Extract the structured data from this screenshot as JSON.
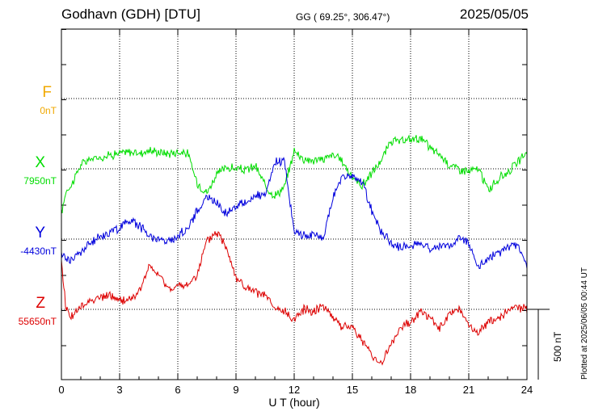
{
  "header": {
    "station": "Godhavn (GDH)  [DTU]",
    "coordinates": "GG ( 69.25°, 306.47°)",
    "date": "2025/05/05"
  },
  "footer": {
    "plotted": "Plotted at 2025/06/05 00:44 UT"
  },
  "components": [
    {
      "letter": "F",
      "baseline": "0nT",
      "color": "#f0a800"
    },
    {
      "letter": "X",
      "baseline": "7950nT",
      "color": "#00dd00"
    },
    {
      "letter": "Y",
      "baseline": "-4430nT",
      "color": "#0000dd"
    },
    {
      "letter": "Z",
      "baseline": "55650nT",
      "color": "#dd0000"
    }
  ],
  "scale_bar": {
    "label": "500 nT",
    "value_nT": 500
  },
  "chart_data": {
    "type": "line",
    "xlabel": "U T (hour)",
    "xlim": [
      0,
      24
    ],
    "xticks": [
      "0",
      "3",
      "6",
      "9",
      "12",
      "15",
      "18",
      "21",
      "24"
    ],
    "ylabel": "",
    "y_unit": "nT (offset from baseline)",
    "series": [
      {
        "name": "X",
        "baseline_nT": 7950,
        "x": [
          0,
          0.25,
          0.5,
          1,
          1.5,
          2,
          2.5,
          3,
          3.5,
          4,
          4.5,
          5,
          5.5,
          6,
          6.5,
          7,
          7.5,
          8,
          8.5,
          9,
          9.5,
          10,
          10.5,
          11,
          11.5,
          12,
          12.5,
          13,
          13.5,
          14,
          14.5,
          15,
          15.5,
          16,
          16.5,
          17,
          17.5,
          18,
          18.5,
          19,
          19.5,
          20,
          20.5,
          21,
          21.5,
          22,
          22.5,
          23,
          23.5,
          24
        ],
        "values": [
          -320,
          -150,
          -120,
          30,
          70,
          80,
          100,
          110,
          120,
          110,
          130,
          120,
          110,
          120,
          110,
          -100,
          -170,
          -40,
          10,
          0,
          -10,
          20,
          -120,
          -190,
          -130,
          130,
          70,
          60,
          70,
          100,
          50,
          -60,
          -120,
          -30,
          60,
          200,
          190,
          210,
          220,
          150,
          100,
          30,
          0,
          -20,
          0,
          -150,
          -80,
          -20,
          40,
          120
        ]
      },
      {
        "name": "Y",
        "baseline_nT": -4430,
        "x": [
          0,
          0.5,
          1,
          1.5,
          2,
          2.5,
          3,
          3.5,
          4,
          4.5,
          5,
          5.5,
          6,
          6.5,
          7,
          7.5,
          8,
          8.5,
          9,
          9.5,
          10,
          10.5,
          11,
          11.5,
          12,
          12.5,
          13,
          13.5,
          14,
          14.5,
          15,
          15.5,
          16,
          16.5,
          17,
          17.5,
          18,
          18.5,
          19,
          19.5,
          20,
          20.5,
          21,
          21.5,
          22,
          22.5,
          23,
          23.5,
          24
        ],
        "values": [
          -110,
          -150,
          -90,
          -30,
          20,
          50,
          80,
          140,
          100,
          30,
          0,
          -20,
          20,
          80,
          200,
          300,
          260,
          180,
          240,
          260,
          310,
          300,
          540,
          560,
          50,
          30,
          30,
          0,
          300,
          450,
          440,
          410,
          200,
          50,
          -30,
          -60,
          -50,
          -20,
          -70,
          -50,
          -50,
          10,
          -20,
          -200,
          -140,
          -100,
          -60,
          -40,
          -200
        ]
      },
      {
        "name": "Z",
        "baseline_nT": 55650,
        "x": [
          0,
          0.25,
          0.5,
          1,
          1.5,
          2,
          2.5,
          3,
          3.5,
          4,
          4.5,
          5,
          5.5,
          6,
          6.5,
          7,
          7.5,
          8,
          8.5,
          9,
          9.5,
          10,
          10.5,
          11,
          11.5,
          12,
          12.5,
          13,
          13.5,
          14,
          14.5,
          15,
          15.5,
          16,
          16.5,
          17,
          17.5,
          18,
          18.5,
          19,
          19.5,
          20,
          20.5,
          21,
          21.5,
          22,
          22.5,
          23,
          23.5,
          24
        ],
        "values": [
          320,
          0,
          -50,
          10,
          70,
          80,
          100,
          60,
          70,
          120,
          300,
          250,
          150,
          160,
          170,
          250,
          480,
          550,
          450,
          230,
          150,
          120,
          100,
          0,
          -20,
          -70,
          0,
          -10,
          30,
          -50,
          -130,
          -120,
          -220,
          -330,
          -380,
          -250,
          -130,
          -90,
          -10,
          -60,
          -140,
          -40,
          10,
          -120,
          -170,
          -90,
          -60,
          -20,
          20,
          0
        ]
      }
    ]
  }
}
